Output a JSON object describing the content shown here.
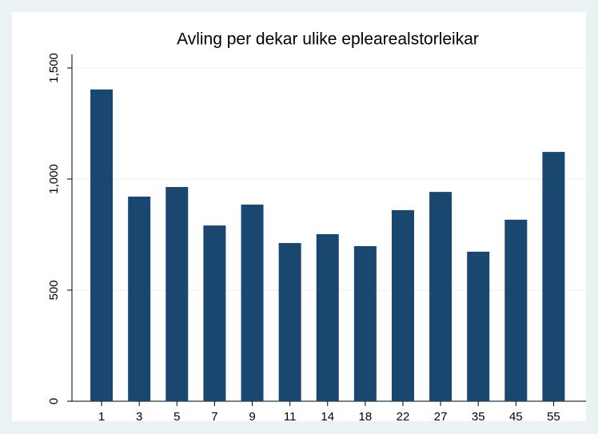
{
  "chart_data": {
    "type": "bar",
    "title": "Avling per dekar ulike eplearealstorleikar",
    "categories": [
      "1",
      "3",
      "5",
      "7",
      "9",
      "11",
      "14",
      "18",
      "22",
      "27",
      "35",
      "45",
      "55"
    ],
    "values": [
      1403,
      921,
      964,
      791,
      885,
      712,
      752,
      698,
      860,
      942,
      673,
      817,
      1122
    ],
    "color": "#1a476f",
    "ylim": [
      0,
      1500
    ],
    "yticks": [
      0,
      500,
      {
        "value": 1000,
        "label": "1,000"
      },
      {
        "value": 1500,
        "label": "1,500"
      }
    ],
    "grid": true
  }
}
